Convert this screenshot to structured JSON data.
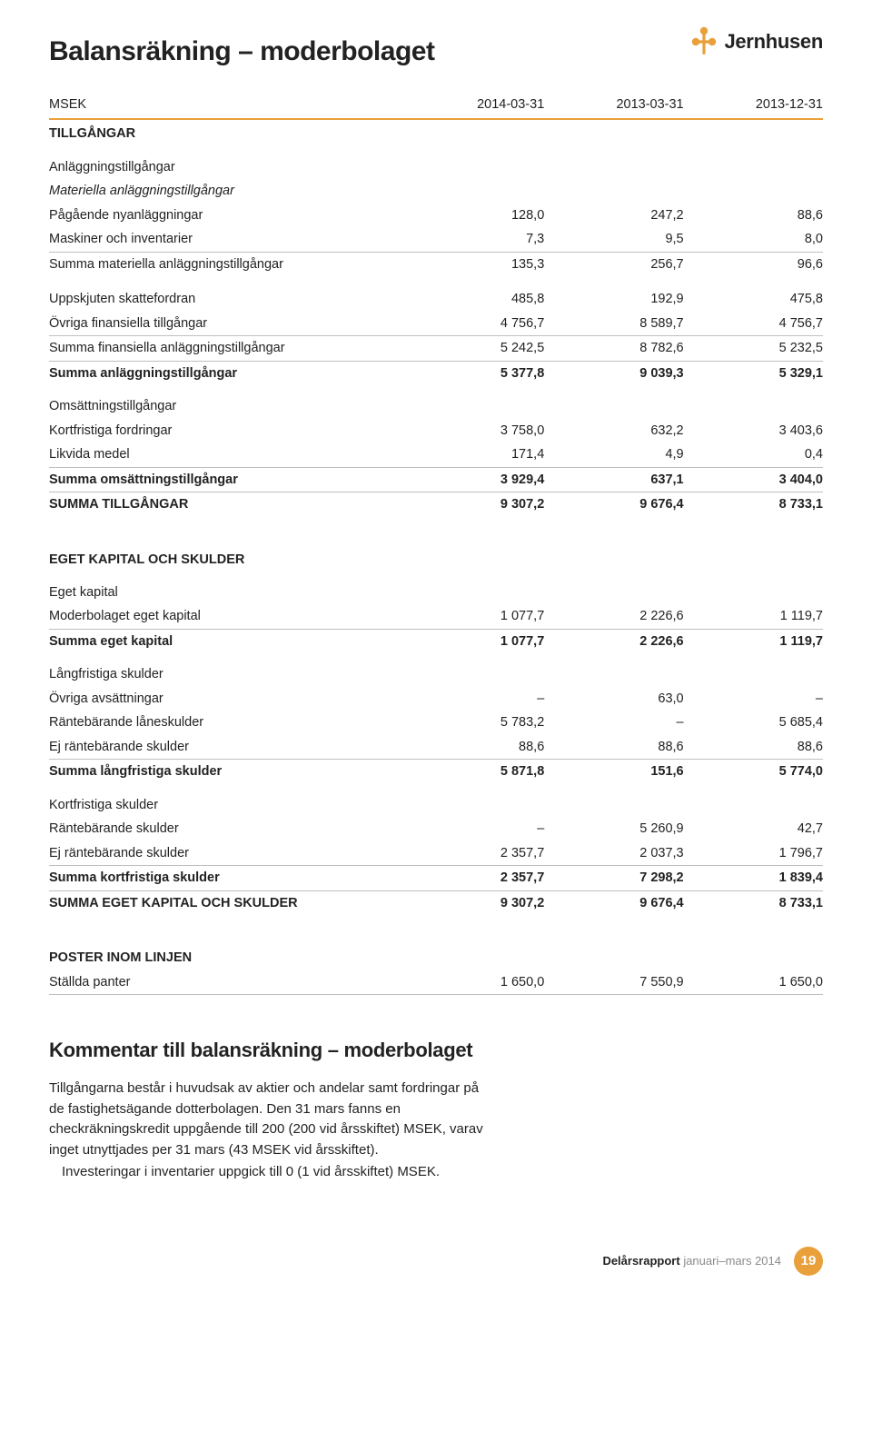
{
  "brand": {
    "name": "Jernhusen",
    "icon_color": "#e9a03a"
  },
  "title": "Balansräkning – moderbolaget",
  "unit_label": "MSEK",
  "columns": [
    "2014-03-31",
    "2013-03-31",
    "2013-12-31"
  ],
  "sections": {
    "tillgangar": {
      "heading": "TILLGÅNGAR",
      "groups": [
        {
          "heading": "Anläggningstillgångar",
          "rows": [
            {
              "label": "Materiella anläggningstillgångar",
              "italic": true
            },
            {
              "label": "Pågående nyanläggningar",
              "v": [
                "128,0",
                "247,2",
                "88,6"
              ]
            },
            {
              "label": "Maskiner och inventarier",
              "v": [
                "7,3",
                "9,5",
                "8,0"
              ],
              "underline": true
            },
            {
              "label": "Summa materiella anläggningstillgångar",
              "v": [
                "135,3",
                "256,7",
                "96,6"
              ]
            },
            {
              "label": "Uppskjuten skattefordran",
              "v": [
                "485,8",
                "192,9",
                "475,8"
              ],
              "spacer": true
            },
            {
              "label": "Övriga finansiella tillgångar",
              "v": [
                "4 756,7",
                "8 589,7",
                "4 756,7"
              ],
              "underline": true
            },
            {
              "label": "Summa finansiella anläggningstillgångar",
              "v": [
                "5 242,5",
                "8 782,6",
                "5 232,5"
              ],
              "underline": true
            },
            {
              "label": "Summa anläggningstillgångar",
              "v": [
                "5 377,8",
                "9 039,3",
                "5 329,1"
              ],
              "bold": true
            }
          ]
        },
        {
          "heading": "Omsättningstillgångar",
          "rows": [
            {
              "label": "Kortfristiga fordringar",
              "v": [
                "3 758,0",
                "632,2",
                "3 403,6"
              ]
            },
            {
              "label": "Likvida medel",
              "v": [
                "171,4",
                "4,9",
                "0,4"
              ],
              "underline": true
            },
            {
              "label": "Summa omsättningstillgångar",
              "v": [
                "3 929,4",
                "637,1",
                "3 404,0"
              ],
              "bold": true,
              "underline": true
            },
            {
              "label": "SUMMA TILLGÅNGAR",
              "v": [
                "9 307,2",
                "9 676,4",
                "8 733,1"
              ],
              "bold": true
            }
          ]
        }
      ]
    },
    "eget": {
      "heading": "EGET KAPITAL OCH SKULDER",
      "groups": [
        {
          "heading": "Eget kapital",
          "rows": [
            {
              "label": "Moderbolaget eget kapital",
              "v": [
                "1 077,7",
                "2 226,6",
                "1 119,7"
              ],
              "underline": true
            },
            {
              "label": "Summa eget kapital",
              "v": [
                "1 077,7",
                "2 226,6",
                "1 119,7"
              ],
              "bold": true
            }
          ]
        },
        {
          "heading": "Långfristiga skulder",
          "rows": [
            {
              "label": "Övriga avsättningar",
              "v": [
                "–",
                "63,0",
                "–"
              ]
            },
            {
              "label": "Räntebärande låneskulder",
              "v": [
                "5 783,2",
                "–",
                "5 685,4"
              ]
            },
            {
              "label": "Ej räntebärande skulder",
              "v": [
                "88,6",
                "88,6",
                "88,6"
              ],
              "underline": true
            },
            {
              "label": "Summa långfristiga skulder",
              "v": [
                "5 871,8",
                "151,6",
                "5 774,0"
              ],
              "bold": true
            }
          ]
        },
        {
          "heading": "Kortfristiga skulder",
          "rows": [
            {
              "label": "Räntebärande skulder",
              "v": [
                "–",
                "5 260,9",
                "42,7"
              ]
            },
            {
              "label": "Ej räntebärande skulder",
              "v": [
                "2 357,7",
                "2 037,3",
                "1 796,7"
              ],
              "underline": true
            },
            {
              "label": "Summa kortfristiga skulder",
              "v": [
                "2 357,7",
                "7 298,2",
                "1 839,4"
              ],
              "bold": true,
              "underline": true
            },
            {
              "label": "SUMMA EGET KAPITAL OCH SKULDER",
              "v": [
                "9 307,2",
                "9 676,4",
                "8 733,1"
              ],
              "bold": true
            }
          ]
        }
      ]
    },
    "poster": {
      "heading": "POSTER INOM LINJEN",
      "rows": [
        {
          "label": "Ställda panter",
          "v": [
            "1 650,0",
            "7 550,9",
            "1 650,0"
          ],
          "underline": true
        }
      ]
    }
  },
  "comment": {
    "heading": "Kommentar till balansräkning – moderbolaget",
    "paragraphs": [
      "Tillgångarna består i huvudsak av aktier och andelar samt fordringar på de fastighetsägande dotterbolagen. Den 31 mars fanns en checkräkningskredit uppgående till 200 (200 vid årsskiftet) MSEK, varav inget utnyttjades per 31 mars (43 MSEK vid årsskiftet).",
      "Investeringar i inventarier uppgick till 0 (1 vid årsskiftet) MSEK."
    ]
  },
  "footer": {
    "report": "Delårsrapport",
    "period": "januari–mars 2014",
    "page_number": "19"
  }
}
